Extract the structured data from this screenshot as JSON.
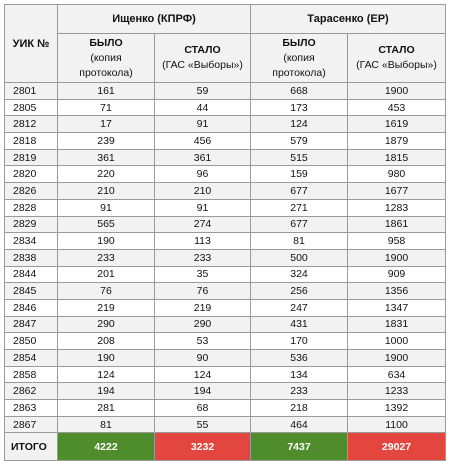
{
  "header": {
    "uik": "УИК №",
    "candidates": [
      "Ищенко (КПРФ)",
      "Тарасенко (ЕР)"
    ],
    "sub": [
      {
        "title": "БЫЛО",
        "line1": "(копия",
        "line2": "протокола)"
      },
      {
        "title": "СТАЛО",
        "line1": "(ГАС «Выборы»)",
        "line2": ""
      },
      {
        "title": "БЫЛО",
        "line1": "(копия",
        "line2": "протокола)"
      },
      {
        "title": "СТАЛО",
        "line1": "(ГАС «Выборы»)",
        "line2": ""
      }
    ]
  },
  "rows": [
    {
      "uik": "2801",
      "v": [
        "161",
        "59",
        "668",
        "1900"
      ]
    },
    {
      "uik": "2805",
      "v": [
        "71",
        "44",
        "173",
        "453"
      ]
    },
    {
      "uik": "2812",
      "v": [
        "17",
        "91",
        "124",
        "1619"
      ]
    },
    {
      "uik": "2818",
      "v": [
        "239",
        "456",
        "579",
        "1879"
      ]
    },
    {
      "uik": "2819",
      "v": [
        "361",
        "361",
        "515",
        "1815"
      ]
    },
    {
      "uik": "2820",
      "v": [
        "220",
        "96",
        "159",
        "980"
      ]
    },
    {
      "uik": "2826",
      "v": [
        "210",
        "210",
        "677",
        "1677"
      ]
    },
    {
      "uik": "2828",
      "v": [
        "91",
        "91",
        "271",
        "1283"
      ]
    },
    {
      "uik": "2829",
      "v": [
        "565",
        "274",
        "677",
        "1861"
      ]
    },
    {
      "uik": "2834",
      "v": [
        "190",
        "113",
        "81",
        "958"
      ]
    },
    {
      "uik": "2838",
      "v": [
        "233",
        "233",
        "500",
        "1900"
      ]
    },
    {
      "uik": "2844",
      "v": [
        "201",
        "35",
        "324",
        "909"
      ]
    },
    {
      "uik": "2845",
      "v": [
        "76",
        "76",
        "256",
        "1356"
      ]
    },
    {
      "uik": "2846",
      "v": [
        "219",
        "219",
        "247",
        "1347"
      ]
    },
    {
      "uik": "2847",
      "v": [
        "290",
        "290",
        "431",
        "1831"
      ]
    },
    {
      "uik": "2850",
      "v": [
        "208",
        "53",
        "170",
        "1000"
      ]
    },
    {
      "uik": "2854",
      "v": [
        "190",
        "90",
        "536",
        "1900"
      ]
    },
    {
      "uik": "2858",
      "v": [
        "124",
        "124",
        "134",
        "634"
      ]
    },
    {
      "uik": "2862",
      "v": [
        "194",
        "194",
        "233",
        "1233"
      ]
    },
    {
      "uik": "2863",
      "v": [
        "281",
        "68",
        "218",
        "1392"
      ]
    },
    {
      "uik": "2867",
      "v": [
        "81",
        "55",
        "464",
        "1100"
      ]
    }
  ],
  "total": {
    "label": "ИТОГО",
    "v": [
      "4222",
      "3232",
      "7437",
      "29027"
    ]
  },
  "colors": {
    "total_green": "#4e8c2c",
    "total_red": "#e3463f"
  }
}
